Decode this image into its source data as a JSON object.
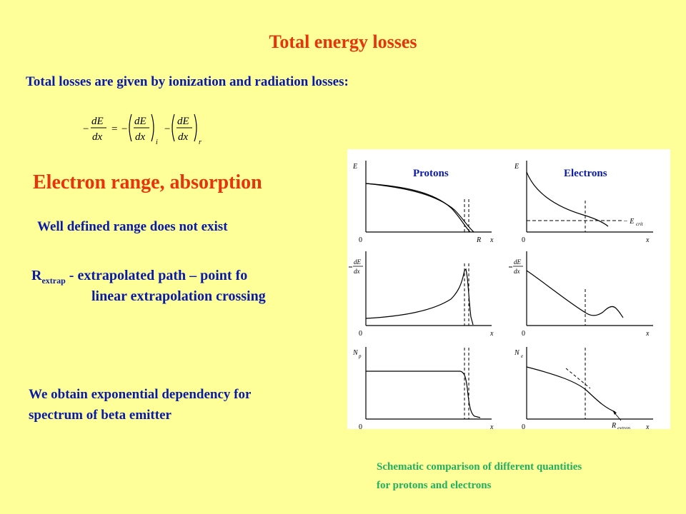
{
  "title": "Total energy losses",
  "intro": "Total losses are given by ionization and radiation losses:",
  "formula": {
    "minus": "−",
    "numerator": "dE",
    "denominator": "dx",
    "equals": "=",
    "subscript_ionization": "i",
    "subscript_radiation": "r"
  },
  "heading2": "Electron range, absorption",
  "no_range": "Well defined range does not exist",
  "rextrap": {
    "symbol": "R",
    "subscript": "extrap",
    "text": " - extrapolated path – point fo",
    "continuation": "linear extrapolation crossing"
  },
  "conclusion": {
    "line1": "We obtain exponential dependency for",
    "line2": "spectrum of beta emitter"
  },
  "figure": {
    "col_protons": "Protons",
    "col_electrons": "Electrons",
    "y_energy": "E",
    "y_dedx_num": "dE",
    "y_dedx_den": "dx",
    "y_np": "N",
    "y_np_sub": "p",
    "y_ne": "N",
    "y_ne_sub": "e",
    "x_label": "x",
    "origin": "0",
    "r_label": "R",
    "ecrit": "− E",
    "ecrit_sub": "crit",
    "rextrap_label": "R",
    "rextrap_sub": "extrap"
  },
  "caption": {
    "line1": "Schematic comparison of different quantities",
    "line2": "for protons and electrons"
  },
  "colors": {
    "background": "#ffff99",
    "title": "#e8340c",
    "text": "#0a1aa8",
    "caption": "#20b060"
  }
}
